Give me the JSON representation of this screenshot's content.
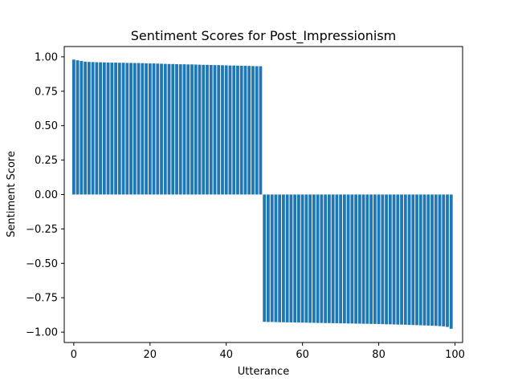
{
  "chart_data": {
    "type": "bar",
    "title": "Sentiment Scores for Post_Impressionism",
    "xlabel": "Utterance",
    "ylabel": "Sentiment Score",
    "xlim": [
      -2.5,
      102
    ],
    "ylim": [
      -1.075,
      1.075
    ],
    "xticks": [
      0,
      20,
      40,
      60,
      80,
      100
    ],
    "yticks": [
      1.0,
      0.75,
      0.5,
      0.25,
      0.0,
      -0.25,
      -0.5,
      -0.75,
      -1.0
    ],
    "ytick_labels": [
      "1.00",
      "0.75",
      "0.50",
      "0.25",
      "0.00",
      "−0.25",
      "−0.50",
      "−0.75",
      "−1.00"
    ],
    "bar_color": "#1f77b4",
    "grid": false,
    "x": [
      0,
      1,
      2,
      3,
      4,
      5,
      6,
      7,
      8,
      9,
      10,
      11,
      12,
      13,
      14,
      15,
      16,
      17,
      18,
      19,
      20,
      21,
      22,
      23,
      24,
      25,
      26,
      27,
      28,
      29,
      30,
      31,
      32,
      33,
      34,
      35,
      36,
      37,
      38,
      39,
      40,
      41,
      42,
      43,
      44,
      45,
      46,
      47,
      48,
      49,
      50,
      51,
      52,
      53,
      54,
      55,
      56,
      57,
      58,
      59,
      60,
      61,
      62,
      63,
      64,
      65,
      66,
      67,
      68,
      69,
      70,
      71,
      72,
      73,
      74,
      75,
      76,
      77,
      78,
      79,
      80,
      81,
      82,
      83,
      84,
      85,
      86,
      87,
      88,
      89,
      90,
      91,
      92,
      93,
      94,
      95,
      96,
      97,
      98,
      99
    ],
    "values": [
      0.98,
      0.975,
      0.97,
      0.965,
      0.963,
      0.962,
      0.961,
      0.96,
      0.96,
      0.959,
      0.958,
      0.958,
      0.957,
      0.957,
      0.956,
      0.956,
      0.955,
      0.955,
      0.954,
      0.953,
      0.952,
      0.952,
      0.951,
      0.95,
      0.949,
      0.948,
      0.948,
      0.947,
      0.946,
      0.946,
      0.945,
      0.945,
      0.944,
      0.943,
      0.942,
      0.942,
      0.941,
      0.94,
      0.94,
      0.939,
      0.938,
      0.937,
      0.937,
      0.936,
      0.935,
      0.935,
      0.934,
      0.933,
      0.932,
      0.932,
      -0.925,
      -0.926,
      -0.926,
      -0.927,
      -0.928,
      -0.928,
      -0.929,
      -0.929,
      -0.93,
      -0.93,
      -0.931,
      -0.931,
      -0.932,
      -0.932,
      -0.933,
      -0.933,
      -0.934,
      -0.934,
      -0.935,
      -0.935,
      -0.936,
      -0.936,
      -0.937,
      -0.937,
      -0.938,
      -0.938,
      -0.939,
      -0.939,
      -0.94,
      -0.94,
      -0.941,
      -0.942,
      -0.943,
      -0.943,
      -0.944,
      -0.945,
      -0.945,
      -0.946,
      -0.947,
      -0.948,
      -0.949,
      -0.95,
      -0.951,
      -0.952,
      -0.953,
      -0.954,
      -0.956,
      -0.958,
      -0.962,
      -0.975
    ]
  }
}
